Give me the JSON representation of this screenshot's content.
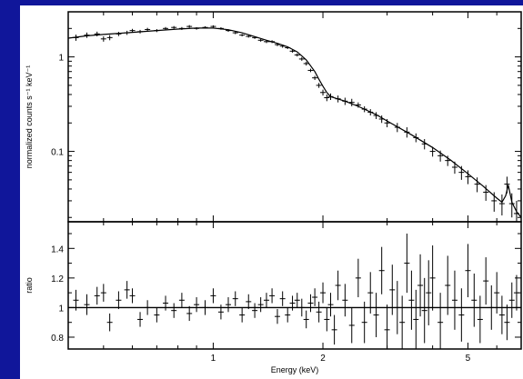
{
  "colors": {
    "frame_background": "#10169a",
    "plot_background": "#ffffff",
    "data": "#000000"
  },
  "chart_data": [
    {
      "type": "scatter",
      "panel": "top",
      "title": "",
      "xlabel": "",
      "ylabel": "normalized counts s⁻¹ keV⁻¹",
      "xscale": "log",
      "yscale": "log",
      "xlim": [
        0.4,
        7.0
      ],
      "ylim": [
        0.018,
        3.0
      ],
      "yticks": [
        {
          "value": 1,
          "label": "1"
        },
        {
          "value": 0.1,
          "label": "0.1"
        }
      ],
      "x_tick_labels_shown": false,
      "grid": false,
      "legend": "none",
      "series": [
        {
          "name": "",
          "kind": "data points with error bars",
          "x": [
            0.42,
            0.45,
            0.48,
            0.5,
            0.52,
            0.55,
            0.58,
            0.6,
            0.63,
            0.66,
            0.7,
            0.74,
            0.78,
            0.82,
            0.86,
            0.9,
            0.95,
            1.0,
            1.05,
            1.1,
            1.15,
            1.2,
            1.25,
            1.3,
            1.35,
            1.4,
            1.45,
            1.5,
            1.55,
            1.6,
            1.65,
            1.7,
            1.75,
            1.8,
            1.85,
            1.9,
            1.95,
            2.0,
            2.05,
            2.1,
            2.2,
            2.3,
            2.4,
            2.5,
            2.6,
            2.7,
            2.8,
            2.9,
            3.0,
            3.2,
            3.4,
            3.6,
            3.8,
            4.0,
            4.2,
            4.4,
            4.6,
            4.8,
            5.0,
            5.3,
            5.6,
            5.9,
            6.2,
            6.4,
            6.6,
            6.8
          ],
          "y": [
            1.6,
            1.7,
            1.75,
            1.55,
            1.6,
            1.75,
            1.8,
            1.9,
            1.85,
            1.95,
            1.9,
            2.0,
            2.05,
            2.0,
            2.1,
            2.0,
            2.05,
            2.1,
            2.0,
            1.9,
            1.8,
            1.7,
            1.65,
            1.6,
            1.5,
            1.45,
            1.45,
            1.35,
            1.3,
            1.25,
            1.15,
            1.05,
            0.95,
            0.85,
            0.72,
            0.6,
            0.5,
            0.42,
            0.37,
            0.38,
            0.36,
            0.34,
            0.33,
            0.31,
            0.28,
            0.26,
            0.24,
            0.22,
            0.2,
            0.18,
            0.16,
            0.14,
            0.12,
            0.1,
            0.09,
            0.08,
            0.068,
            0.06,
            0.054,
            0.045,
            0.037,
            0.03,
            0.028,
            0.045,
            0.028,
            0.022
          ],
          "yerr": [
            0.12,
            0.11,
            0.1,
            0.1,
            0.1,
            0.09,
            0.09,
            0.08,
            0.08,
            0.08,
            0.07,
            0.07,
            0.07,
            0.07,
            0.07,
            0.06,
            0.06,
            0.06,
            0.06,
            0.06,
            0.06,
            0.05,
            0.05,
            0.05,
            0.05,
            0.05,
            0.05,
            0.05,
            0.05,
            0.04,
            0.04,
            0.04,
            0.04,
            0.04,
            0.03,
            0.03,
            0.03,
            0.03,
            0.03,
            0.03,
            0.03,
            0.03,
            0.03,
            0.02,
            0.02,
            0.02,
            0.02,
            0.02,
            0.02,
            0.02,
            0.02,
            0.015,
            0.015,
            0.012,
            0.012,
            0.01,
            0.01,
            0.01,
            0.009,
            0.008,
            0.007,
            0.007,
            0.007,
            0.009,
            0.008,
            0.008
          ]
        },
        {
          "name": "",
          "kind": "model curve",
          "x": [
            0.4,
            0.45,
            0.5,
            0.6,
            0.7,
            0.8,
            0.9,
            1.0,
            1.1,
            1.2,
            1.3,
            1.4,
            1.5,
            1.6,
            1.7,
            1.8,
            1.9,
            1.95,
            2.0,
            2.05,
            2.1,
            2.3,
            2.5,
            2.8,
            3.0,
            3.5,
            4.0,
            4.5,
            5.0,
            5.5,
            6.0,
            6.2,
            6.35,
            6.45,
            6.6,
            6.8,
            7.0
          ],
          "y": [
            1.58,
            1.67,
            1.73,
            1.82,
            1.9,
            1.97,
            2.02,
            2.02,
            1.94,
            1.8,
            1.64,
            1.5,
            1.39,
            1.28,
            1.13,
            0.93,
            0.7,
            0.58,
            0.49,
            0.42,
            0.38,
            0.34,
            0.3,
            0.245,
            0.21,
            0.15,
            0.11,
            0.08,
            0.058,
            0.043,
            0.032,
            0.029,
            0.034,
            0.044,
            0.029,
            0.023,
            0.02
          ]
        }
      ]
    },
    {
      "type": "scatter",
      "panel": "bottom",
      "title": "",
      "xlabel": "Energy (keV)",
      "ylabel": "ratio",
      "xscale": "log",
      "yscale": "linear",
      "xlim": [
        0.4,
        7.0
      ],
      "ylim": [
        0.72,
        1.58
      ],
      "xticks": [
        {
          "value": 1,
          "label": "1"
        },
        {
          "value": 2,
          "label": "2"
        },
        {
          "value": 5,
          "label": "5"
        }
      ],
      "yticks": [
        {
          "value": 0.8,
          "label": "0.8"
        },
        {
          "value": 1,
          "label": "1"
        },
        {
          "value": 1.2,
          "label": "1.2"
        },
        {
          "value": 1.4,
          "label": "1.4"
        }
      ],
      "reference_line": 1.0,
      "grid": false,
      "legend": "none",
      "series": [
        {
          "name": "",
          "kind": "data points with error bars",
          "x": [
            0.42,
            0.45,
            0.48,
            0.5,
            0.52,
            0.55,
            0.58,
            0.6,
            0.63,
            0.66,
            0.7,
            0.74,
            0.78,
            0.82,
            0.86,
            0.9,
            0.95,
            1.0,
            1.05,
            1.1,
            1.15,
            1.2,
            1.25,
            1.3,
            1.35,
            1.4,
            1.45,
            1.5,
            1.55,
            1.6,
            1.65,
            1.7,
            1.75,
            1.8,
            1.85,
            1.9,
            1.95,
            2.0,
            2.05,
            2.1,
            2.15,
            2.2,
            2.3,
            2.4,
            2.5,
            2.6,
            2.7,
            2.8,
            2.9,
            3.0,
            3.1,
            3.2,
            3.3,
            3.4,
            3.5,
            3.6,
            3.7,
            3.8,
            3.9,
            4.0,
            4.2,
            4.4,
            4.6,
            4.8,
            5.0,
            5.2,
            5.4,
            5.6,
            5.8,
            6.0,
            6.2,
            6.4,
            6.6,
            6.8
          ],
          "y": [
            1.05,
            1.02,
            1.08,
            1.1,
            0.9,
            1.05,
            1.12,
            1.08,
            0.92,
            1.0,
            0.95,
            1.03,
            0.98,
            1.05,
            0.96,
            1.02,
            1.0,
            1.08,
            0.97,
            1.02,
            1.06,
            0.95,
            1.04,
            0.98,
            1.02,
            1.05,
            1.08,
            0.94,
            1.06,
            0.95,
            1.03,
            1.05,
            1.0,
            0.92,
            1.03,
            1.07,
            0.97,
            1.1,
            0.92,
            1.02,
            0.85,
            1.15,
            1.05,
            0.88,
            1.2,
            0.9,
            1.1,
            0.95,
            1.25,
            0.85,
            1.12,
            1.0,
            0.9,
            1.3,
            1.05,
            0.92,
            1.15,
            0.98,
            1.1,
            1.2,
            0.9,
            1.15,
            1.05,
            0.95,
            1.25,
            1.05,
            0.92,
            1.18,
            1.0,
            1.1,
            0.95,
            0.9,
            1.05,
            1.1
          ],
          "yerr": [
            0.07,
            0.07,
            0.06,
            0.06,
            0.06,
            0.06,
            0.06,
            0.05,
            0.05,
            0.05,
            0.05,
            0.05,
            0.05,
            0.05,
            0.05,
            0.05,
            0.05,
            0.05,
            0.05,
            0.05,
            0.05,
            0.05,
            0.05,
            0.05,
            0.05,
            0.05,
            0.05,
            0.05,
            0.05,
            0.05,
            0.05,
            0.05,
            0.06,
            0.06,
            0.06,
            0.06,
            0.07,
            0.07,
            0.08,
            0.08,
            0.1,
            0.1,
            0.11,
            0.12,
            0.13,
            0.14,
            0.14,
            0.15,
            0.16,
            0.17,
            0.17,
            0.18,
            0.18,
            0.2,
            0.2,
            0.2,
            0.21,
            0.22,
            0.22,
            0.22,
            0.2,
            0.2,
            0.2,
            0.18,
            0.18,
            0.18,
            0.16,
            0.16,
            0.15,
            0.14,
            0.13,
            0.12,
            0.12,
            0.12
          ]
        }
      ]
    }
  ]
}
